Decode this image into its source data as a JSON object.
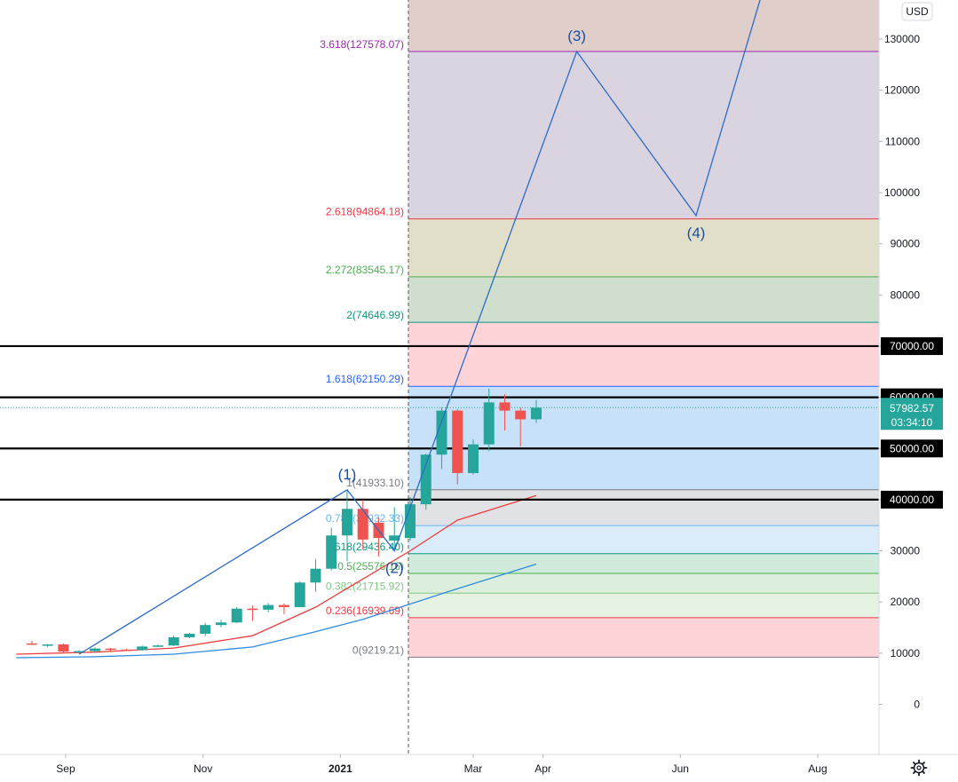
{
  "chart_data": {
    "type": "candlestick",
    "currency_label": "USD",
    "x_ticks": [
      "Sep",
      "Nov",
      "2021",
      "Mar",
      "Apr",
      "Jun",
      "Aug"
    ],
    "y_ticks": [
      "0",
      "10000",
      "20000",
      "30000",
      "40000",
      "50000",
      "60000",
      "70000",
      "80000",
      "90000",
      "100000",
      "110000",
      "120000",
      "130000"
    ],
    "ylim": [
      -10000,
      137000
    ],
    "candles": [
      {
        "date": "2020-08-17",
        "open": 11900,
        "high": 12400,
        "low": 11600,
        "close": 11650
      },
      {
        "date": "2020-08-24",
        "open": 11650,
        "high": 11800,
        "low": 11200,
        "close": 11700
      },
      {
        "date": "2020-08-31",
        "open": 11700,
        "high": 11900,
        "low": 9900,
        "close": 10300
      },
      {
        "date": "2020-09-07",
        "open": 10300,
        "high": 10600,
        "low": 9900,
        "close": 10400
      },
      {
        "date": "2020-09-14",
        "open": 10400,
        "high": 11100,
        "low": 10200,
        "close": 10900
      },
      {
        "date": "2020-09-21",
        "open": 10900,
        "high": 11000,
        "low": 10300,
        "close": 10700
      },
      {
        "date": "2020-09-28",
        "open": 10700,
        "high": 10900,
        "low": 10400,
        "close": 10600
      },
      {
        "date": "2020-10-05",
        "open": 10600,
        "high": 11500,
        "low": 10500,
        "close": 11300
      },
      {
        "date": "2020-10-12",
        "open": 11300,
        "high": 11700,
        "low": 11200,
        "close": 11500
      },
      {
        "date": "2020-10-19",
        "open": 11500,
        "high": 13500,
        "low": 11400,
        "close": 13100
      },
      {
        "date": "2020-10-26",
        "open": 13100,
        "high": 14000,
        "low": 12900,
        "close": 13800
      },
      {
        "date": "2020-11-02",
        "open": 13800,
        "high": 15900,
        "low": 13300,
        "close": 15500
      },
      {
        "date": "2020-11-09",
        "open": 15500,
        "high": 16500,
        "low": 15100,
        "close": 16000
      },
      {
        "date": "2020-11-16",
        "open": 16000,
        "high": 19000,
        "low": 15900,
        "close": 18700
      },
      {
        "date": "2020-11-23",
        "open": 18700,
        "high": 19300,
        "low": 16300,
        "close": 18500
      },
      {
        "date": "2020-11-30",
        "open": 18500,
        "high": 19800,
        "low": 18000,
        "close": 19400
      },
      {
        "date": "2020-12-07",
        "open": 19400,
        "high": 19700,
        "low": 17600,
        "close": 19000
      },
      {
        "date": "2020-12-14",
        "open": 19000,
        "high": 24000,
        "low": 19000,
        "close": 23800
      },
      {
        "date": "2020-12-21",
        "open": 23800,
        "high": 28400,
        "low": 22000,
        "close": 26500
      },
      {
        "date": "2020-12-28",
        "open": 26500,
        "high": 34500,
        "low": 26200,
        "close": 33000
      },
      {
        "date": "2021-01-04",
        "open": 33000,
        "high": 41900,
        "low": 28000,
        "close": 38200
      },
      {
        "date": "2021-01-11",
        "open": 38200,
        "high": 40000,
        "low": 30200,
        "close": 32200
      },
      {
        "date": "2021-01-18",
        "open": 35500,
        "high": 36500,
        "low": 28900,
        "close": 32500
      },
      {
        "date": "2021-01-25",
        "open": 32000,
        "high": 38500,
        "low": 30000,
        "close": 33000
      },
      {
        "date": "2021-02-01",
        "open": 32500,
        "high": 40500,
        "low": 32000,
        "close": 39100
      },
      {
        "date": "2021-02-08",
        "open": 39100,
        "high": 49000,
        "low": 38000,
        "close": 48800
      },
      {
        "date": "2021-02-15",
        "open": 48800,
        "high": 58000,
        "low": 46000,
        "close": 57400
      },
      {
        "date": "2021-02-22",
        "open": 57400,
        "high": 57700,
        "low": 43000,
        "close": 45200
      },
      {
        "date": "2021-03-01",
        "open": 45200,
        "high": 51800,
        "low": 44900,
        "close": 50800
      },
      {
        "date": "2021-03-08",
        "open": 50800,
        "high": 61700,
        "low": 49500,
        "close": 59000
      },
      {
        "date": "2021-03-15",
        "open": 59000,
        "high": 60600,
        "low": 53500,
        "close": 57400
      },
      {
        "date": "2021-03-22",
        "open": 57400,
        "high": 58000,
        "low": 50400,
        "close": 55700
      },
      {
        "date": "2021-03-29",
        "open": 55700,
        "high": 59500,
        "low": 55000,
        "close": 57982.57
      }
    ],
    "moving_averages": [
      {
        "color": "#ef3d3d",
        "points": [
          [
            "2020-08-10",
            9800
          ],
          [
            "2020-09-14",
            10200
          ],
          [
            "2020-10-19",
            11000
          ],
          [
            "2020-11-23",
            13400
          ],
          [
            "2020-12-21",
            19000
          ],
          [
            "2021-01-11",
            24500
          ],
          [
            "2021-02-01",
            30000
          ],
          [
            "2021-02-22",
            36000
          ],
          [
            "2021-03-29",
            40800
          ]
        ]
      },
      {
        "color": "#2d8ade",
        "points": [
          [
            "2020-08-10",
            9100
          ],
          [
            "2020-09-14",
            9300
          ],
          [
            "2020-10-19",
            9800
          ],
          [
            "2020-11-23",
            11200
          ],
          [
            "2020-12-21",
            14200
          ],
          [
            "2021-01-11",
            16600
          ],
          [
            "2021-02-01",
            19600
          ],
          [
            "2021-02-22",
            22600
          ],
          [
            "2021-03-29",
            27400
          ]
        ]
      }
    ],
    "fibonacci_levels": [
      {
        "label": "0(9219.21)",
        "ratio": "0",
        "price": 9219.21,
        "color": "#787b86",
        "fill": "#ffcdd2"
      },
      {
        "label": "0.236(16939.69)",
        "ratio": "0.236",
        "price": 16939.69,
        "color": "#f23645",
        "fill": "#e3f1dd"
      },
      {
        "label": "0.382(21715.92)",
        "ratio": "0.382",
        "price": 21715.92,
        "color": "#81c784",
        "fill": "#d6ecd6"
      },
      {
        "label": "0.5(25576.16)",
        "ratio": "0.5",
        "price": 25576.16,
        "color": "#4caf50",
        "fill": "#c8e6d6"
      },
      {
        "label": "0.618(29436.40)",
        "ratio": "0.618",
        "price": 29436.4,
        "color": "#089981",
        "fill": "#d4e8f8"
      },
      {
        "label": "0.786(34932.33)",
        "ratio": "0.786",
        "price": 34932.33,
        "color": "#64b5f6",
        "fill": "#dcdde0"
      },
      {
        "label": "1(41933.10)",
        "ratio": "1",
        "price": 41933.1,
        "color": "#787b86",
        "fill": "#bcdcf7"
      },
      {
        "label": "1.618(62150.29)",
        "ratio": "1.618",
        "price": 62150.29,
        "color": "#2962ff",
        "fill": "#ffcdd2"
      },
      {
        "label": "2(74646.99)",
        "ratio": "2",
        "price": 74646.99,
        "color": "#089981",
        "fill": "#c8d8c6"
      },
      {
        "label": "2.272(83545.17)",
        "ratio": "2.272",
        "price": 83545.17,
        "color": "#4caf50",
        "fill": "#dcd9c0"
      },
      {
        "label": "2.618(94864.18)",
        "ratio": "2.618",
        "price": 94864.18,
        "color": "#f23645",
        "fill": "#d4cddb"
      },
      {
        "label": "3.618(127578.07)",
        "ratio": "3.618",
        "price": 127578.07,
        "color": "#9c27b0",
        "fill": "#dbc5c2"
      }
    ],
    "fib_start_date": "2021-02-01",
    "horizontal_lines": [
      {
        "price": 70000,
        "label": "70000.00"
      },
      {
        "price": 60000,
        "label": "60000.00"
      },
      {
        "price": 50000,
        "label": "50000.00"
      },
      {
        "price": 40000,
        "label": "40000.00"
      }
    ],
    "last_price": {
      "value": "57982.57",
      "countdown": "03:34:10",
      "price": 57982.57
    },
    "wave_path": [
      {
        "date": "2020-09-07",
        "price": 9800,
        "label": ""
      },
      {
        "date": "2021-01-04",
        "price": 41933,
        "label": "(1)"
      },
      {
        "date": "2021-01-25",
        "price": 30000,
        "label": "(2)"
      },
      {
        "date": "2021-04-16",
        "price": 127578,
        "label": "(3)"
      },
      {
        "date": "2021-06-08",
        "price": 95500,
        "label": "(4)"
      },
      {
        "date": "2021-07-08",
        "price": 140000,
        "label": ""
      }
    ],
    "colors": {
      "up": "#26a69a",
      "down": "#ef5350",
      "wave": "#2d6bc9",
      "background": "#ffffff"
    }
  }
}
